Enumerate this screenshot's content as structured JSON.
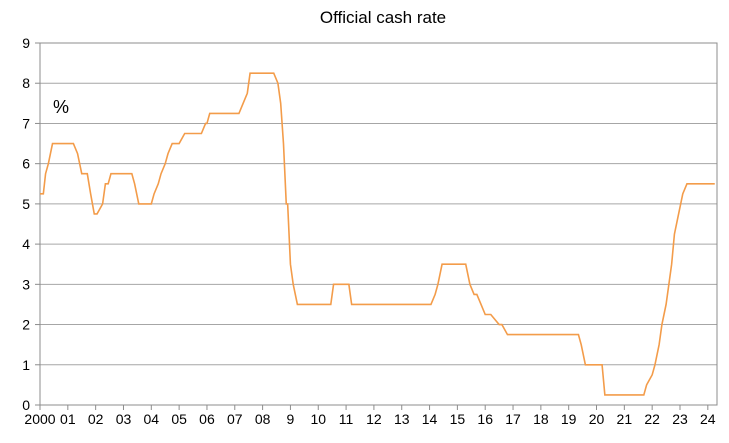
{
  "chart_data": {
    "type": "line",
    "title": "Official cash rate",
    "unit_label": "%",
    "xlabel": "",
    "ylabel": "",
    "ylim": [
      0,
      9
    ],
    "xlim": [
      2000.0,
      2024.33
    ],
    "grid": true,
    "y_ticks": [
      "0",
      "1",
      "2",
      "3",
      "4",
      "5",
      "6",
      "7",
      "8",
      "9"
    ],
    "x_ticks": [
      {
        "label": "2000",
        "value": 2000.0
      },
      {
        "label": "01",
        "value": 2001.0
      },
      {
        "label": "02",
        "value": 2002.0
      },
      {
        "label": "03",
        "value": 2003.0
      },
      {
        "label": "04",
        "value": 2004.0
      },
      {
        "label": "05",
        "value": 2005.0
      },
      {
        "label": "06",
        "value": 2006.0
      },
      {
        "label": "07",
        "value": 2007.0
      },
      {
        "label": "08",
        "value": 2008.0
      },
      {
        "label": "9",
        "value": 2009.0
      },
      {
        "label": "10",
        "value": 2010.0
      },
      {
        "label": "11",
        "value": 2011.0
      },
      {
        "label": "12",
        "value": 2012.0
      },
      {
        "label": "13",
        "value": 2013.0
      },
      {
        "label": "14",
        "value": 2014.0
      },
      {
        "label": "15",
        "value": 2015.0
      },
      {
        "label": "16",
        "value": 2016.0
      },
      {
        "label": "17",
        "value": 2017.0
      },
      {
        "label": "18",
        "value": 2018.0
      },
      {
        "label": "19",
        "value": 2019.0
      },
      {
        "label": "20",
        "value": 2020.0
      },
      {
        "label": "21",
        "value": 2021.0
      },
      {
        "label": "22",
        "value": 2022.0
      },
      {
        "label": "23",
        "value": 2023.0
      },
      {
        "label": "24",
        "value": 2024.0
      }
    ],
    "series": [
      {
        "color": "#f39c4a",
        "x": [
          2000.0,
          2000.12,
          2000.2,
          2000.3,
          2000.45,
          2001.2,
          2001.35,
          2001.5,
          2001.7,
          2001.82,
          2001.95,
          2002.05,
          2002.25,
          2002.35,
          2002.45,
          2002.55,
          2002.65,
          2003.3,
          2003.4,
          2003.55,
          2003.75,
          2004.0,
          2004.1,
          2004.25,
          2004.35,
          2004.5,
          2004.6,
          2004.75,
          2005.0,
          2005.2,
          2005.3,
          2005.8,
          2005.95,
          2006.0,
          2006.1,
          2007.15,
          2007.3,
          2007.45,
          2007.55,
          2008.4,
          2008.55,
          2008.65,
          2008.75,
          2008.85,
          2008.9,
          2009.0,
          2009.1,
          2009.25,
          2010.45,
          2010.55,
          2011.1,
          2011.2,
          2014.05,
          2014.2,
          2014.3,
          2014.45,
          2015.3,
          2015.45,
          2015.6,
          2015.7,
          2015.85,
          2016.0,
          2016.2,
          2016.5,
          2016.6,
          2016.8,
          2019.35,
          2019.45,
          2019.6,
          2020.2,
          2020.3,
          2021.7,
          2021.8,
          2022.0,
          2022.1,
          2022.25,
          2022.35,
          2022.5,
          2022.6,
          2022.7,
          2022.8,
          2022.95,
          2023.1,
          2023.25,
          2023.35,
          2023.5,
          2024.25
        ],
        "values": [
          5.25,
          5.25,
          5.75,
          6.0,
          6.5,
          6.5,
          6.25,
          5.75,
          5.75,
          5.25,
          4.75,
          4.75,
          5.0,
          5.5,
          5.5,
          5.75,
          5.75,
          5.75,
          5.5,
          5.0,
          5.0,
          5.0,
          5.25,
          5.5,
          5.75,
          6.0,
          6.25,
          6.5,
          6.5,
          6.75,
          6.75,
          6.75,
          7.0,
          7.0,
          7.25,
          7.25,
          7.5,
          7.75,
          8.25,
          8.25,
          8.0,
          7.5,
          6.5,
          5.0,
          5.0,
          3.5,
          3.0,
          2.5,
          2.5,
          3.0,
          3.0,
          2.5,
          2.5,
          2.75,
          3.0,
          3.5,
          3.5,
          3.0,
          2.75,
          2.75,
          2.5,
          2.25,
          2.25,
          2.0,
          2.0,
          1.75,
          1.75,
          1.5,
          1.0,
          1.0,
          0.25,
          0.25,
          0.5,
          0.75,
          1.0,
          1.5,
          2.0,
          2.5,
          3.0,
          3.5,
          4.25,
          4.75,
          5.25,
          5.5,
          5.5,
          5.5,
          5.5
        ]
      }
    ]
  }
}
